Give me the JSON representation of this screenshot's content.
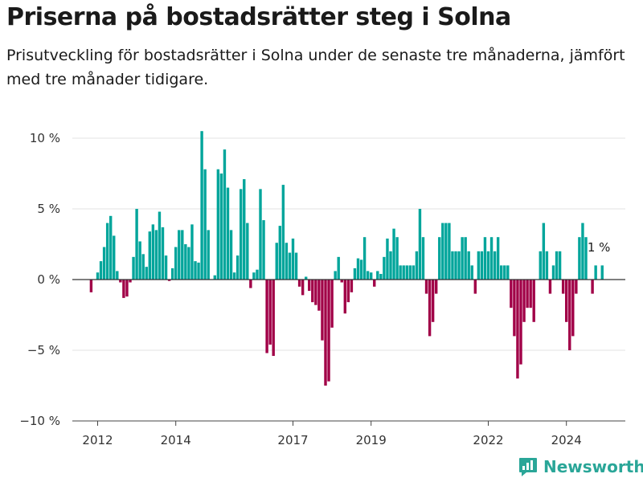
{
  "title": "Priserna på bostadsrätter steg i Solna",
  "subtitle": "Prisutveckling för bostadsrätter i Solna under de senaste tre månaderna, jämfört med tre månader tidigare.",
  "brand": "Newsworthy",
  "chart_data": {
    "type": "bar",
    "y_unit": "%",
    "ylim": [
      -10,
      11
    ],
    "y_ticks": [
      10,
      5,
      0,
      -5,
      -10
    ],
    "y_tick_labels": [
      "10 %",
      "5 %",
      "0 %",
      "−5 %",
      "−10 %"
    ],
    "x_tick_labels": [
      {
        "label": "2012",
        "date": "2012-01"
      },
      {
        "label": "2014",
        "date": "2014-01"
      },
      {
        "label": "2017",
        "date": "2017-01"
      },
      {
        "label": "2019",
        "date": "2019-01"
      },
      {
        "label": "2022",
        "date": "2022-01"
      },
      {
        "label": "2024",
        "date": "2024-01"
      }
    ],
    "grid": true,
    "colors": {
      "positive": "#00a59b",
      "negative": "#a10047"
    },
    "annotation": {
      "text": "1 %",
      "date": "2024-10",
      "value": 1
    },
    "values": [
      {
        "date": "2011-11",
        "value": -0.9
      },
      {
        "date": "2012-01",
        "value": 0.5
      },
      {
        "date": "2012-02",
        "value": 1.3
      },
      {
        "date": "2012-03",
        "value": 2.3
      },
      {
        "date": "2012-04",
        "value": 4.0
      },
      {
        "date": "2012-05",
        "value": 4.5
      },
      {
        "date": "2012-06",
        "value": 3.1
      },
      {
        "date": "2012-07",
        "value": 0.6
      },
      {
        "date": "2012-08",
        "value": -0.2
      },
      {
        "date": "2012-09",
        "value": -1.3
      },
      {
        "date": "2012-10",
        "value": -1.2
      },
      {
        "date": "2012-11",
        "value": -0.2
      },
      {
        "date": "2012-12",
        "value": 1.6
      },
      {
        "date": "2013-01",
        "value": 5.0
      },
      {
        "date": "2013-02",
        "value": 2.7
      },
      {
        "date": "2013-03",
        "value": 1.8
      },
      {
        "date": "2013-04",
        "value": 0.9
      },
      {
        "date": "2013-05",
        "value": 3.4
      },
      {
        "date": "2013-06",
        "value": 3.9
      },
      {
        "date": "2013-07",
        "value": 3.5
      },
      {
        "date": "2013-08",
        "value": 4.8
      },
      {
        "date": "2013-09",
        "value": 3.7
      },
      {
        "date": "2013-10",
        "value": 1.7
      },
      {
        "date": "2013-11",
        "value": -0.1
      },
      {
        "date": "2013-12",
        "value": 0.8
      },
      {
        "date": "2014-01",
        "value": 2.3
      },
      {
        "date": "2014-02",
        "value": 3.5
      },
      {
        "date": "2014-03",
        "value": 3.5
      },
      {
        "date": "2014-04",
        "value": 2.5
      },
      {
        "date": "2014-05",
        "value": 2.3
      },
      {
        "date": "2014-06",
        "value": 3.9
      },
      {
        "date": "2014-07",
        "value": 1.3
      },
      {
        "date": "2014-08",
        "value": 1.2
      },
      {
        "date": "2014-09",
        "value": 10.5
      },
      {
        "date": "2014-10",
        "value": 7.8
      },
      {
        "date": "2014-11",
        "value": 3.5
      },
      {
        "date": "2015-01",
        "value": 0.3
      },
      {
        "date": "2015-02",
        "value": 7.8
      },
      {
        "date": "2015-03",
        "value": 7.5
      },
      {
        "date": "2015-04",
        "value": 9.2
      },
      {
        "date": "2015-05",
        "value": 6.5
      },
      {
        "date": "2015-06",
        "value": 3.5
      },
      {
        "date": "2015-07",
        "value": 0.5
      },
      {
        "date": "2015-08",
        "value": 1.7
      },
      {
        "date": "2015-09",
        "value": 6.4
      },
      {
        "date": "2015-10",
        "value": 7.1
      },
      {
        "date": "2015-11",
        "value": 4.0
      },
      {
        "date": "2015-12",
        "value": -0.6
      },
      {
        "date": "2016-01",
        "value": 0.5
      },
      {
        "date": "2016-02",
        "value": 0.7
      },
      {
        "date": "2016-03",
        "value": 6.4
      },
      {
        "date": "2016-04",
        "value": 4.2
      },
      {
        "date": "2016-05",
        "value": -5.2
      },
      {
        "date": "2016-06",
        "value": -4.6
      },
      {
        "date": "2016-07",
        "value": -5.4
      },
      {
        "date": "2016-08",
        "value": 2.6
      },
      {
        "date": "2016-09",
        "value": 3.8
      },
      {
        "date": "2016-10",
        "value": 6.7
      },
      {
        "date": "2016-11",
        "value": 2.6
      },
      {
        "date": "2016-12",
        "value": 1.9
      },
      {
        "date": "2017-01",
        "value": 2.9
      },
      {
        "date": "2017-02",
        "value": 1.9
      },
      {
        "date": "2017-03",
        "value": -0.5
      },
      {
        "date": "2017-04",
        "value": -1.1
      },
      {
        "date": "2017-05",
        "value": 0.2
      },
      {
        "date": "2017-06",
        "value": -0.8
      },
      {
        "date": "2017-07",
        "value": -1.6
      },
      {
        "date": "2017-08",
        "value": -1.8
      },
      {
        "date": "2017-09",
        "value": -2.2
      },
      {
        "date": "2017-10",
        "value": -4.3
      },
      {
        "date": "2017-11",
        "value": -7.5
      },
      {
        "date": "2017-12",
        "value": -7.2
      },
      {
        "date": "2018-01",
        "value": -3.4
      },
      {
        "date": "2018-02",
        "value": 0.6
      },
      {
        "date": "2018-03",
        "value": 1.6
      },
      {
        "date": "2018-04",
        "value": -0.2
      },
      {
        "date": "2018-05",
        "value": -2.4
      },
      {
        "date": "2018-06",
        "value": -1.6
      },
      {
        "date": "2018-07",
        "value": -0.9
      },
      {
        "date": "2018-08",
        "value": 0.8
      },
      {
        "date": "2018-09",
        "value": 1.5
      },
      {
        "date": "2018-10",
        "value": 1.4
      },
      {
        "date": "2018-11",
        "value": 3.0
      },
      {
        "date": "2018-12",
        "value": 0.6
      },
      {
        "date": "2019-01",
        "value": 0.5
      },
      {
        "date": "2019-02",
        "value": -0.5
      },
      {
        "date": "2019-03",
        "value": 0.6
      },
      {
        "date": "2019-04",
        "value": 0.4
      },
      {
        "date": "2019-05",
        "value": 1.6
      },
      {
        "date": "2019-06",
        "value": 2.9
      },
      {
        "date": "2019-07",
        "value": 2.0
      },
      {
        "date": "2019-08",
        "value": 3.6
      },
      {
        "date": "2019-09",
        "value": 3.0
      },
      {
        "date": "2019-10",
        "value": 1.0
      },
      {
        "date": "2019-11",
        "value": 1.0
      },
      {
        "date": "2019-12",
        "value": 1.0
      },
      {
        "date": "2020-01",
        "value": 1.0
      },
      {
        "date": "2020-02",
        "value": 1.0
      },
      {
        "date": "2020-03",
        "value": 2.0
      },
      {
        "date": "2020-04",
        "value": 5.0
      },
      {
        "date": "2020-05",
        "value": 3.0
      },
      {
        "date": "2020-06",
        "value": -1.0
      },
      {
        "date": "2020-07",
        "value": -4.0
      },
      {
        "date": "2020-08",
        "value": -3.0
      },
      {
        "date": "2020-09",
        "value": -1.0
      },
      {
        "date": "2020-10",
        "value": 3.0
      },
      {
        "date": "2020-11",
        "value": 4.0
      },
      {
        "date": "2020-12",
        "value": 4.0
      },
      {
        "date": "2021-01",
        "value": 4.0
      },
      {
        "date": "2021-02",
        "value": 2.0
      },
      {
        "date": "2021-03",
        "value": 2.0
      },
      {
        "date": "2021-04",
        "value": 2.0
      },
      {
        "date": "2021-05",
        "value": 3.0
      },
      {
        "date": "2021-06",
        "value": 3.0
      },
      {
        "date": "2021-07",
        "value": 2.0
      },
      {
        "date": "2021-08",
        "value": 1.0
      },
      {
        "date": "2021-09",
        "value": -1.0
      },
      {
        "date": "2021-10",
        "value": 2.0
      },
      {
        "date": "2021-11",
        "value": 2.0
      },
      {
        "date": "2021-12",
        "value": 3.0
      },
      {
        "date": "2022-01",
        "value": 2.0
      },
      {
        "date": "2022-02",
        "value": 3.0
      },
      {
        "date": "2022-03",
        "value": 2.0
      },
      {
        "date": "2022-04",
        "value": 3.0
      },
      {
        "date": "2022-05",
        "value": 1.0
      },
      {
        "date": "2022-06",
        "value": 1.0
      },
      {
        "date": "2022-07",
        "value": 1.0
      },
      {
        "date": "2022-08",
        "value": -2.0
      },
      {
        "date": "2022-09",
        "value": -4.0
      },
      {
        "date": "2022-10",
        "value": -7.0
      },
      {
        "date": "2022-11",
        "value": -6.0
      },
      {
        "date": "2022-12",
        "value": -3.0
      },
      {
        "date": "2023-01",
        "value": -2.0
      },
      {
        "date": "2023-02",
        "value": -2.0
      },
      {
        "date": "2023-03",
        "value": -3.0
      },
      {
        "date": "2023-05",
        "value": 2.0
      },
      {
        "date": "2023-06",
        "value": 4.0
      },
      {
        "date": "2023-07",
        "value": 2.0
      },
      {
        "date": "2023-08",
        "value": -1.0
      },
      {
        "date": "2023-09",
        "value": 1.0
      },
      {
        "date": "2023-10",
        "value": 2.0
      },
      {
        "date": "2023-11",
        "value": 2.0
      },
      {
        "date": "2023-12",
        "value": -1.0
      },
      {
        "date": "2024-01",
        "value": -3.0
      },
      {
        "date": "2024-02",
        "value": -5.0
      },
      {
        "date": "2024-03",
        "value": -4.0
      },
      {
        "date": "2024-04",
        "value": -1.0
      },
      {
        "date": "2024-05",
        "value": 3.0
      },
      {
        "date": "2024-06",
        "value": 4.0
      },
      {
        "date": "2024-07",
        "value": 3.0
      },
      {
        "date": "2024-09",
        "value": -1.0
      },
      {
        "date": "2024-10",
        "value": 1.0
      },
      {
        "date": "2024-12",
        "value": 1.0
      }
    ]
  }
}
